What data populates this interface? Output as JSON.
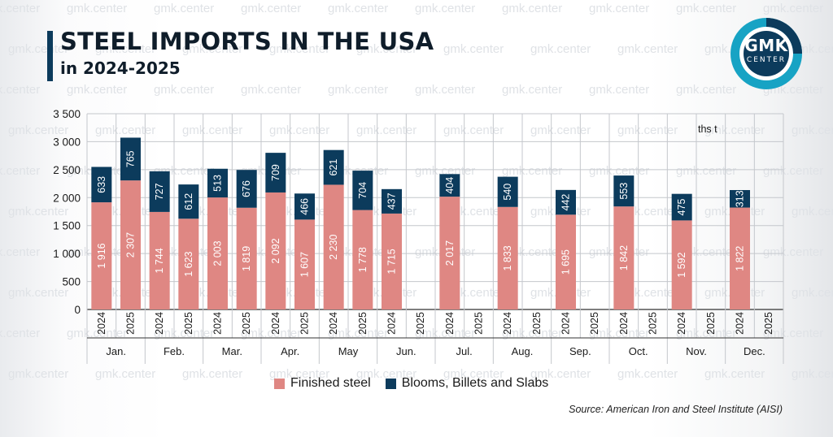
{
  "header": {
    "title": "STEEL IMPORTS IN THE USA",
    "subtitle": "in 2024-2025"
  },
  "logo": {
    "main": "GMK",
    "sub": "CENTER",
    "ring_color": "#17a3c4",
    "inner_color": "#0c3b5c"
  },
  "watermark_text": "gmk.center",
  "source": "Source: American Iron and Steel Institute (AISI)",
  "colors": {
    "finished": "#df8783",
    "semis": "#0c3b5c",
    "grid": "#c4c7cc",
    "axis": "#333333"
  },
  "chart_data": {
    "type": "bar",
    "stacked": true,
    "unit": "ths t",
    "months": [
      "Jan.",
      "Feb.",
      "Mar.",
      "Apr.",
      "May",
      "Jun.",
      "Jul.",
      "Aug.",
      "Sep.",
      "Oct.",
      "Nov.",
      "Dec."
    ],
    "years": [
      "2024",
      "2025"
    ],
    "ylim": [
      0,
      3500
    ],
    "yticks": [
      0,
      500,
      1000,
      1500,
      2000,
      2500,
      3000,
      3500
    ],
    "ytick_labels": [
      "0",
      "500",
      "1 000",
      "1 500",
      "2 000",
      "2 500",
      "3 000",
      "3 500"
    ],
    "grid": true,
    "legend_position": "bottom",
    "series": [
      {
        "name": "Finished steel",
        "key": "finished",
        "values_2024": [
          1916,
          1744,
          2003,
          2092,
          2230,
          1715,
          2017,
          1833,
          1695,
          1842,
          1592,
          1822
        ],
        "labels_2024": [
          "1 916",
          "1 744",
          "2 003",
          "2 092",
          "2 230",
          "1 715",
          "2 017",
          "1 833",
          "1 695",
          "1 842",
          "1 592",
          "1 822"
        ],
        "values_2025": [
          2307,
          1623,
          1819,
          1607,
          1778,
          null,
          null,
          null,
          null,
          null,
          null,
          null
        ],
        "labels_2025": [
          "2 307",
          "1 623",
          "1 819",
          "1 607",
          "1 778",
          null,
          null,
          null,
          null,
          null,
          null,
          null
        ]
      },
      {
        "name": "Blooms, Billets and Slabs",
        "key": "semis",
        "values_2024": [
          633,
          727,
          513,
          709,
          621,
          437,
          404,
          540,
          442,
          553,
          475,
          313
        ],
        "labels_2024": [
          "633",
          "727",
          "513",
          "709",
          "621",
          "437",
          "404",
          "540",
          "442",
          "553",
          "475",
          "313"
        ],
        "values_2025": [
          765,
          612,
          676,
          466,
          704,
          null,
          null,
          null,
          null,
          null,
          null,
          null
        ],
        "labels_2025": [
          "765",
          "612",
          "676",
          "466",
          "704",
          null,
          null,
          null,
          null,
          null,
          null,
          null
        ]
      }
    ]
  }
}
